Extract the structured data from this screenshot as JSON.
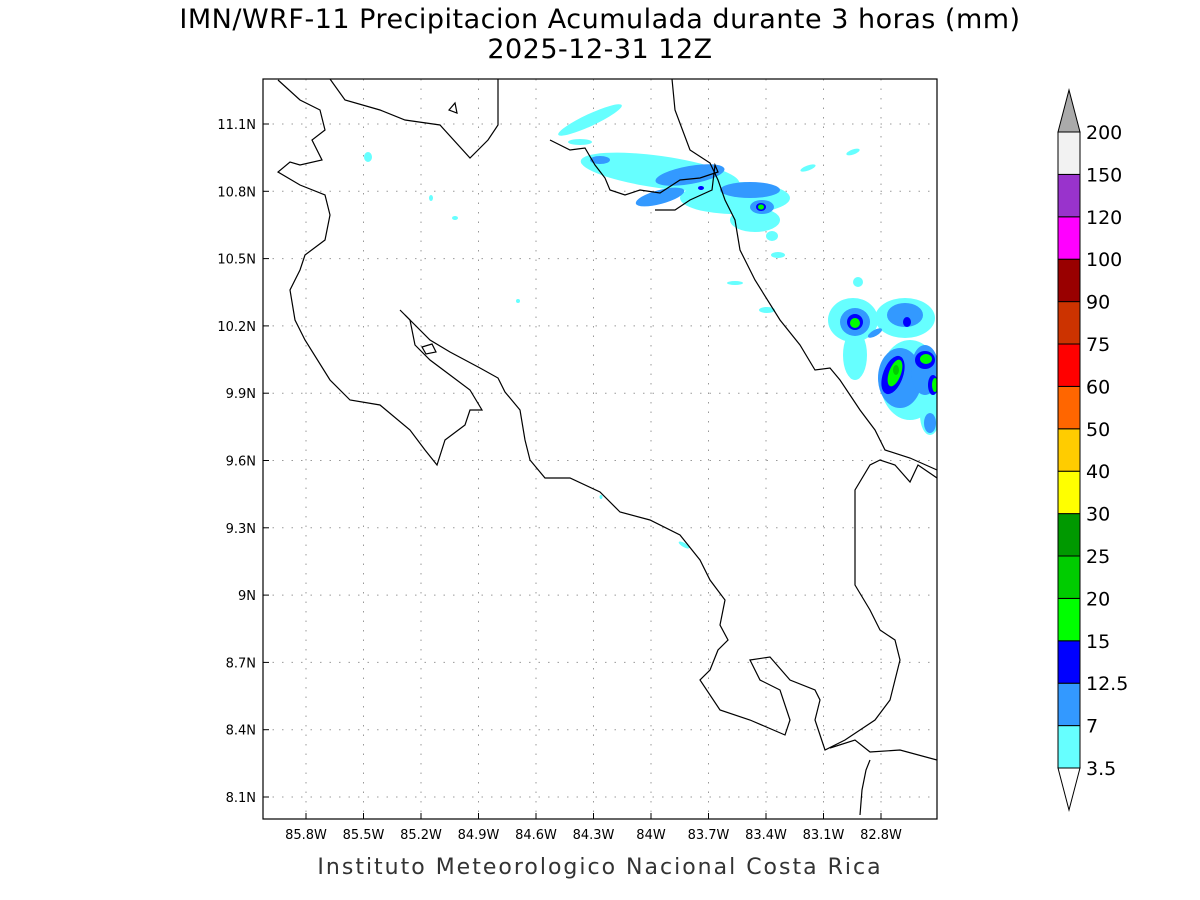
{
  "title": "IMN/WRF-11 Precipitacion Acumulada durante 3 horas (mm)",
  "subtitle": "2025-12-31 12Z",
  "footer": "Instituto Meteorologico Nacional Costa Rica",
  "map": {
    "lon_labels": [
      "85.8W",
      "85.5W",
      "85.2W",
      "84.9W",
      "84.6W",
      "84.3W",
      "84W",
      "83.7W",
      "83.4W",
      "83.1W",
      "82.8W"
    ],
    "lat_labels": [
      "11.1N",
      "10.8N",
      "10.5N",
      "10.2N",
      "9.9N",
      "9.6N",
      "9.3N",
      "9N",
      "8.7N",
      "8.4N",
      "8.1N"
    ]
  },
  "colorbar": {
    "units": "mm",
    "levels": [
      "3.5",
      "7",
      "12.5",
      "15",
      "20",
      "25",
      "30",
      "40",
      "50",
      "60",
      "75",
      "90",
      "100",
      "120",
      "150",
      "200"
    ],
    "colors": [
      "#66ffff",
      "#3399ff",
      "#0000ff",
      "#00ff00",
      "#00cc00",
      "#009900",
      "#ffff00",
      "#ffcc00",
      "#ff6600",
      "#ff0000",
      "#cc3300",
      "#990000",
      "#ff00ff",
      "#9933cc",
      "#f2f2f2"
    ],
    "under_color": "#ffffff",
    "over_color": "#aaaaaa"
  }
}
